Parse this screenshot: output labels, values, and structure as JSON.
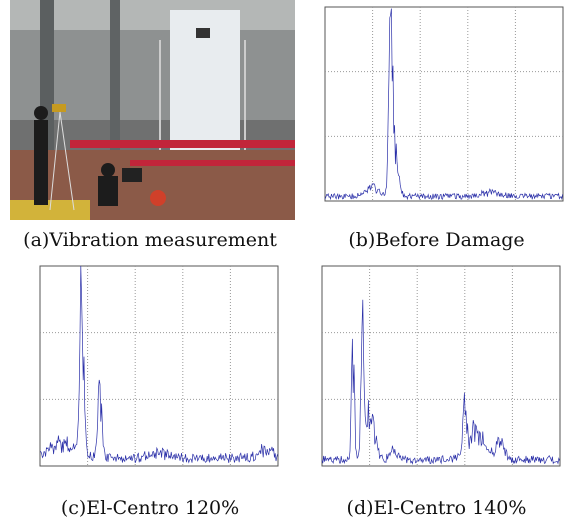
{
  "figure": {
    "panels": [
      {
        "caption": "(a)Vibration measurement"
      },
      {
        "caption": "(b)Before Damage"
      },
      {
        "caption": "(c)El-Centro 120%"
      },
      {
        "caption": "(d)El-Centro 140%"
      }
    ]
  }
}
